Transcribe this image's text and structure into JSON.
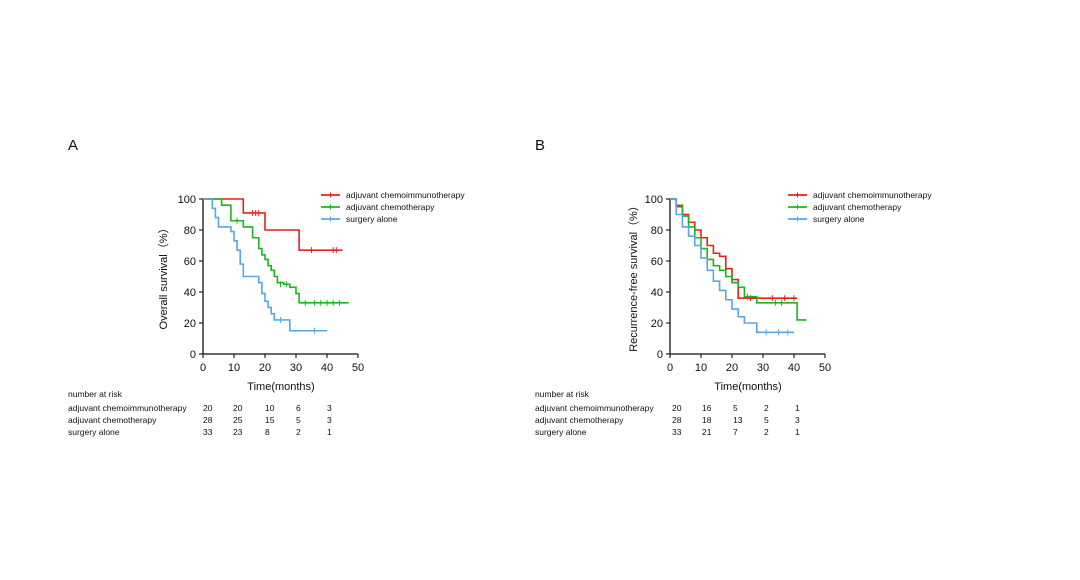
{
  "colors": {
    "chemoimmuno": "#e8211c",
    "chemo": "#1fb41f",
    "surgery": "#5aa6e0",
    "axis": "#111111"
  },
  "chart_data": [
    {
      "type": "line",
      "panel_label": "A",
      "xlabel": "Time(months)",
      "ylabel": "Overall survival（%）",
      "xlim": [
        0,
        50
      ],
      "ylim": [
        0,
        100
      ],
      "xticks": [
        "0",
        "10",
        "20",
        "30",
        "40",
        "50"
      ],
      "yticks": [
        "0",
        "20",
        "40",
        "60",
        "80",
        "100"
      ],
      "legend": [
        "adjuvant chemoimmunotherapy",
        "adjuvant chemotherapy",
        "surgery alone"
      ],
      "series": [
        {
          "name": "adjuvant chemoimmunotherapy",
          "color_key": "chemoimmuno",
          "x": [
            0,
            13,
            20,
            31,
            45
          ],
          "y": [
            100,
            91,
            80,
            67,
            67
          ],
          "censor_x": [
            16,
            17,
            18,
            35,
            42,
            43
          ],
          "censor_y": [
            91,
            91,
            91,
            67,
            67,
            67
          ]
        },
        {
          "name": "adjuvant chemotherapy",
          "color_key": "chemo",
          "x": [
            0,
            6,
            9,
            13,
            16,
            18,
            19,
            20,
            21,
            22,
            23,
            24,
            26,
            28,
            30,
            31,
            47
          ],
          "y": [
            100,
            96,
            86,
            82,
            75,
            68,
            64,
            61,
            57,
            54,
            50,
            46,
            45,
            43,
            39,
            33,
            33
          ],
          "censor_x": [
            11,
            25,
            27,
            33,
            36,
            38,
            40,
            42,
            44
          ],
          "censor_y": [
            86,
            45,
            45,
            33,
            33,
            33,
            33,
            33,
            33
          ]
        },
        {
          "name": "surgery alone",
          "color_key": "surgery",
          "x": [
            0,
            3,
            4,
            5,
            9,
            10,
            11,
            12,
            13,
            18,
            19,
            20,
            21,
            22,
            23,
            28,
            40
          ],
          "y": [
            100,
            94,
            88,
            82,
            79,
            73,
            67,
            58,
            50,
            46,
            39,
            34,
            30,
            26,
            22,
            15,
            15
          ],
          "censor_x": [
            25,
            36
          ],
          "censor_y": [
            22,
            15
          ]
        }
      ],
      "risk_table": {
        "header": "number at risk",
        "rows": [
          {
            "label": "adjuvant chemoimmunotherapy",
            "values": [
              "20",
              "20",
              "10",
              "6",
              "3"
            ]
          },
          {
            "label": "adjuvant chemotherapy",
            "values": [
              "28",
              "25",
              "15",
              "5",
              "3"
            ]
          },
          {
            "label": "surgery alone",
            "values": [
              "33",
              "23",
              "8",
              "2",
              "1"
            ]
          }
        ]
      }
    },
    {
      "type": "line",
      "panel_label": "B",
      "xlabel": "Time(months)",
      "ylabel": "Recurrence-free survival（%）",
      "xlim": [
        0,
        50
      ],
      "ylim": [
        0,
        100
      ],
      "xticks": [
        "0",
        "10",
        "20",
        "30",
        "40",
        "50"
      ],
      "yticks": [
        "0",
        "20",
        "40",
        "60",
        "80",
        "100"
      ],
      "legend": [
        "adjuvant chemoimmunotherapy",
        "adjuvant chemotherapy",
        "surgery alone"
      ],
      "series": [
        {
          "name": "adjuvant chemoimmunotherapy",
          "color_key": "chemoimmuno",
          "x": [
            0,
            2,
            4,
            6,
            8,
            10,
            12,
            14,
            16,
            18,
            20,
            22,
            41
          ],
          "y": [
            100,
            95,
            90,
            85,
            80,
            75,
            70,
            65,
            63,
            55,
            48,
            36,
            36
          ],
          "censor_x": [
            26,
            33,
            37,
            40
          ],
          "censor_y": [
            36,
            36,
            36,
            36
          ]
        },
        {
          "name": "adjuvant chemotherapy",
          "color_key": "chemo",
          "x": [
            0,
            2,
            4,
            6,
            8,
            10,
            12,
            14,
            16,
            18,
            20,
            22,
            24,
            28,
            41,
            44
          ],
          "y": [
            100,
            96,
            89,
            82,
            75,
            68,
            61,
            57,
            54,
            50,
            46,
            43,
            37,
            33,
            22,
            22
          ],
          "censor_x": [
            25,
            34,
            36
          ],
          "censor_y": [
            37,
            33,
            33
          ]
        },
        {
          "name": "surgery alone",
          "color_key": "surgery",
          "x": [
            0,
            2,
            4,
            6,
            8,
            10,
            12,
            14,
            16,
            18,
            20,
            22,
            24,
            28,
            40
          ],
          "y": [
            100,
            90,
            82,
            76,
            70,
            62,
            54,
            47,
            41,
            35,
            29,
            24,
            20,
            14,
            14
          ],
          "censor_x": [
            31,
            35,
            38
          ],
          "censor_y": [
            14,
            14,
            14
          ]
        }
      ],
      "risk_table": {
        "header": "number at risk",
        "rows": [
          {
            "label": "adjuvant chemoimmunotherapy",
            "values": [
              "20",
              "16",
              "5",
              "2",
              "1"
            ]
          },
          {
            "label": "adjuvant chemotherapy",
            "values": [
              "28",
              "18",
              "13",
              "5",
              "3"
            ]
          },
          {
            "label": "surgery alone",
            "values": [
              "33",
              "21",
              "7",
              "2",
              "1"
            ]
          }
        ]
      }
    }
  ]
}
